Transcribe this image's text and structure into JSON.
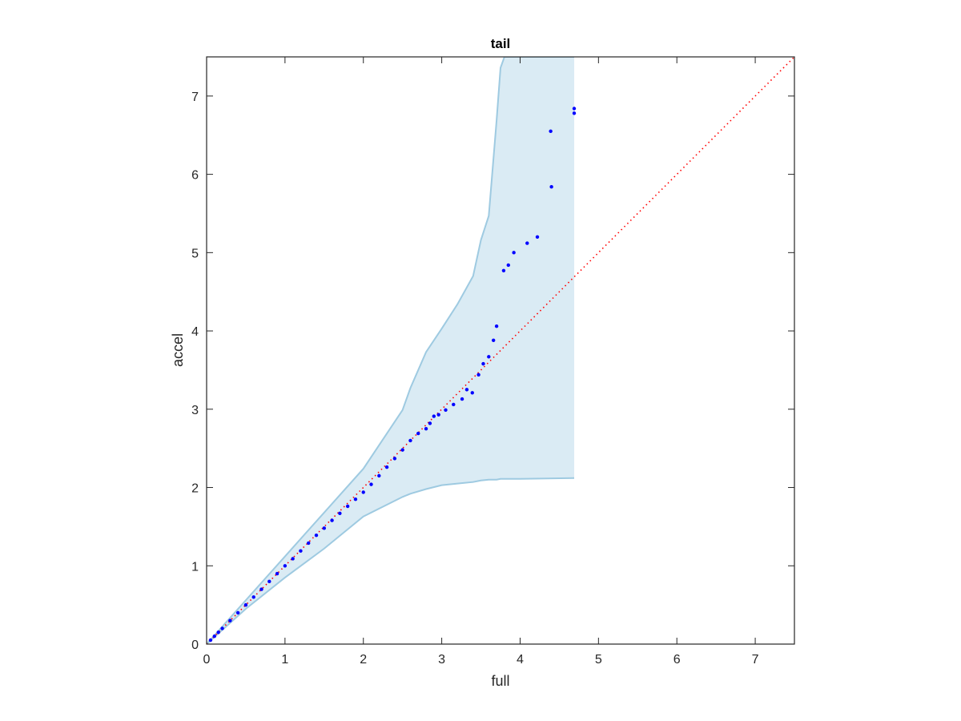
{
  "chart_data": {
    "type": "scatter",
    "title": "tail",
    "xlabel": "full",
    "ylabel": "accel",
    "xlim": [
      0,
      7.5
    ],
    "ylim": [
      0,
      7.5
    ],
    "xticks": [
      0,
      1,
      2,
      3,
      4,
      5,
      6,
      7
    ],
    "yticks": [
      0,
      1,
      2,
      3,
      4,
      5,
      6,
      7
    ],
    "points": {
      "color": "#0000ff",
      "x": [
        0.05,
        0.1,
        0.15,
        0.2,
        0.3,
        0.4,
        0.5,
        0.6,
        0.7,
        0.8,
        0.9,
        1.0,
        1.1,
        1.2,
        1.3,
        1.4,
        1.5,
        1.6,
        1.7,
        1.8,
        1.9,
        2.0,
        2.1,
        2.2,
        2.3,
        2.4,
        2.5,
        2.6,
        2.7,
        2.8,
        2.85,
        2.9,
        2.96,
        3.05,
        3.15,
        3.26,
        3.32,
        3.39,
        3.47,
        3.53,
        3.6,
        3.66,
        3.7,
        3.79,
        3.85,
        3.92,
        4.09,
        4.22,
        4.39,
        4.4,
        4.69,
        4.69
      ],
      "y": [
        0.05,
        0.1,
        0.15,
        0.2,
        0.3,
        0.4,
        0.5,
        0.6,
        0.7,
        0.8,
        0.9,
        1.0,
        1.09,
        1.19,
        1.29,
        1.39,
        1.48,
        1.58,
        1.67,
        1.76,
        1.85,
        1.94,
        2.04,
        2.15,
        2.26,
        2.37,
        2.48,
        2.6,
        2.69,
        2.75,
        2.82,
        2.91,
        2.93,
        2.99,
        3.06,
        3.13,
        3.25,
        3.21,
        3.44,
        3.58,
        3.67,
        3.88,
        4.06,
        4.77,
        4.84,
        5.0,
        5.12,
        5.2,
        6.55,
        5.84,
        6.78,
        6.84
      ]
    },
    "band": {
      "color": "#9ecae1",
      "x": [
        0,
        0.5,
        1,
        1.5,
        2,
        2.5,
        2.6,
        2.8,
        3,
        3.2,
        3.4,
        3.5,
        3.6,
        3.7,
        3.75,
        3.8,
        4,
        4.69
      ],
      "lower": [
        0,
        0.45,
        0.85,
        1.22,
        1.63,
        1.88,
        1.92,
        1.98,
        2.03,
        2.05,
        2.07,
        2.09,
        2.1,
        2.1,
        2.11,
        2.11,
        2.11,
        2.12
      ],
      "upper": [
        0,
        0.56,
        1.12,
        1.68,
        2.24,
        2.99,
        3.27,
        3.73,
        4.03,
        4.34,
        4.7,
        5.16,
        5.47,
        6.69,
        7.36,
        7.5,
        7.5,
        7.5
      ]
    },
    "reference_line": {
      "color": "#ff0000",
      "x": [
        0,
        7.5
      ],
      "y": [
        0,
        7.5
      ]
    }
  }
}
